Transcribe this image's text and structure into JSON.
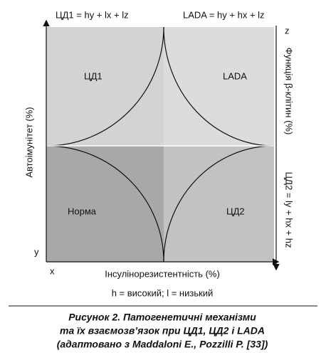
{
  "header": {
    "left_formula": "ЦД1 = hy + lx + lz",
    "right_formula": "LADA = hy + hx + lz"
  },
  "axes": {
    "left_label": "Автоімунітет (%)",
    "right_label": "Функція β-клітин (%)",
    "right_formula": "ЦД2 = ly + hx + hz",
    "bottom_label": "Інсулінорезистентність (%)",
    "x": "x",
    "y": "y",
    "z": "z"
  },
  "quadrants": {
    "top_left": "ЦД1",
    "top_right": "LADA",
    "bottom_left": "Норма",
    "bottom_right": "ЦД2"
  },
  "legend": "h = високий; l = низький",
  "caption": [
    "Рисунок 2.  Патогенетичні механізми",
    "та їх взаємозв’язок при ЦД1, ЦД2 і LADA",
    "(адаптовано з Maddaloni E., Pozzilli P. [33])"
  ]
}
